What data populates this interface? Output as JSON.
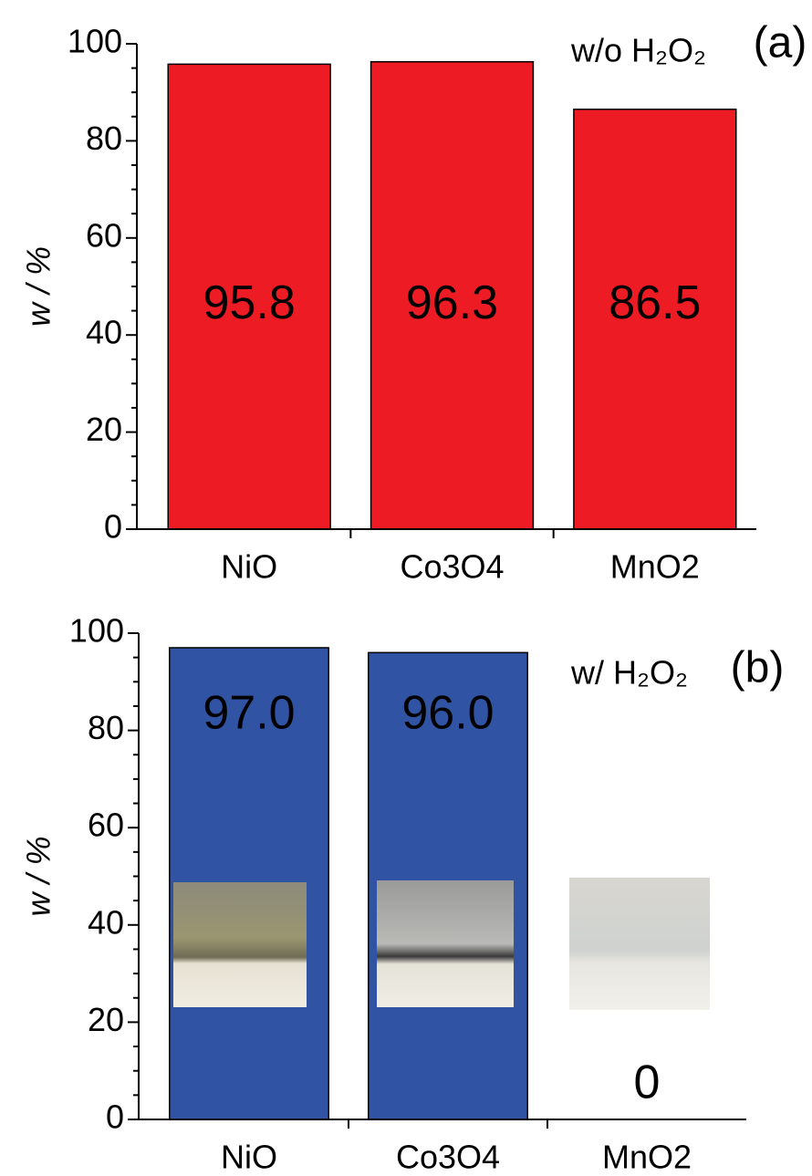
{
  "chart_data": [
    {
      "type": "bar",
      "categories": [
        "NiO",
        "Co3O4",
        "MnO2"
      ],
      "values": [
        95.8,
        96.3,
        86.5
      ],
      "color": "#ed1c24",
      "ylabel": "w / %",
      "ylim": [
        0,
        100
      ],
      "yticks": [
        0,
        20,
        40,
        60,
        80,
        100
      ],
      "annotation": "w/o H₂O₂",
      "panel_label": "(a)"
    },
    {
      "type": "bar",
      "categories": [
        "NiO",
        "Co3O4",
        "MnO2"
      ],
      "values": [
        97.0,
        96.0,
        0
      ],
      "value_labels": [
        "97.0",
        "96.0",
        "0"
      ],
      "color": "#3153a4",
      "ylabel": "w / %",
      "ylim": [
        0,
        100
      ],
      "yticks": [
        0,
        20,
        40,
        60,
        80,
        100
      ],
      "annotation": "w/ H₂O₂",
      "panel_label": "(b)"
    }
  ]
}
